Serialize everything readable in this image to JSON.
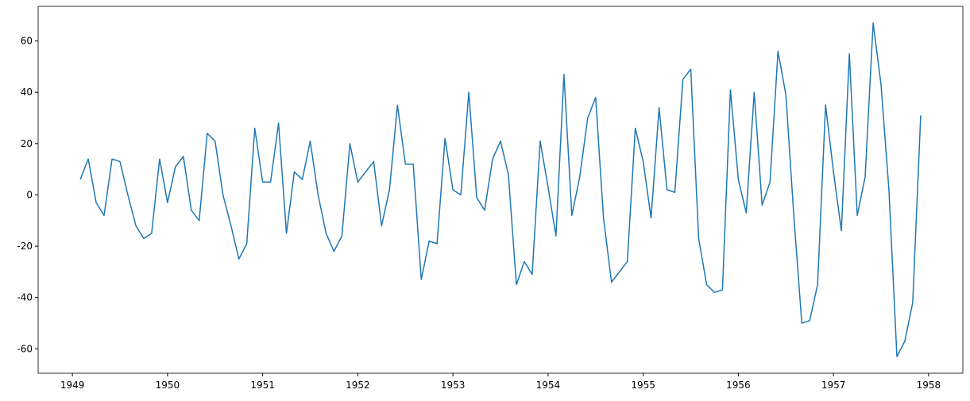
{
  "chart_data": {
    "type": "line",
    "color": "#1f77b4",
    "x": [
      1949.083,
      1949.167,
      1949.25,
      1949.333,
      1949.417,
      1949.5,
      1949.583,
      1949.667,
      1949.75,
      1949.833,
      1949.917,
      1950.0,
      1950.083,
      1950.167,
      1950.25,
      1950.333,
      1950.417,
      1950.5,
      1950.583,
      1950.667,
      1950.75,
      1950.833,
      1950.917,
      1951.0,
      1951.083,
      1951.167,
      1951.25,
      1951.333,
      1951.417,
      1951.5,
      1951.583,
      1951.667,
      1951.75,
      1951.833,
      1951.917,
      1952.0,
      1952.083,
      1952.167,
      1952.25,
      1952.333,
      1952.417,
      1952.5,
      1952.583,
      1952.667,
      1952.75,
      1952.833,
      1952.917,
      1953.0,
      1953.083,
      1953.167,
      1953.25,
      1953.333,
      1953.417,
      1953.5,
      1953.583,
      1953.667,
      1953.75,
      1953.833,
      1953.917,
      1954.0,
      1954.083,
      1954.167,
      1954.25,
      1954.333,
      1954.417,
      1954.5,
      1954.583,
      1954.667,
      1954.75,
      1954.833,
      1954.917,
      1955.0,
      1955.083,
      1955.167,
      1955.25,
      1955.333,
      1955.417,
      1955.5,
      1955.583,
      1955.667,
      1955.75,
      1955.833,
      1955.917,
      1956.0,
      1956.083,
      1956.167,
      1956.25,
      1956.333,
      1956.417,
      1956.5,
      1956.583,
      1956.667,
      1956.75,
      1956.833,
      1956.917,
      1957.0,
      1957.083,
      1957.167,
      1957.25,
      1957.333,
      1957.417,
      1957.5,
      1957.583,
      1957.667,
      1957.75,
      1957.833,
      1957.917
    ],
    "values": [
      6,
      14,
      -3,
      -8,
      14,
      13,
      0,
      -12,
      -17,
      -15,
      14,
      -3,
      11,
      15,
      -6,
      -10,
      24,
      21,
      0,
      -12,
      -25,
      -19,
      26,
      5,
      5,
      28,
      -15,
      9,
      6,
      21,
      0,
      -15,
      -22,
      -16,
      20,
      5,
      9,
      13,
      -12,
      2,
      35,
      12,
      12,
      -33,
      -18,
      -19,
      22,
      2,
      0,
      40,
      -1,
      -6,
      14,
      21,
      8,
      -35,
      -26,
      -31,
      21,
      3,
      -16,
      47,
      -8,
      7,
      30,
      38,
      -9,
      -34,
      -30,
      -26,
      26,
      13,
      -9,
      34,
      2,
      1,
      45,
      49,
      -17,
      -35,
      -38,
      -37,
      41,
      6,
      -7,
      40,
      -4,
      5,
      56,
      39,
      -8,
      -50,
      -49,
      -35,
      35,
      9,
      -14,
      55,
      -8,
      7,
      67,
      43,
      2,
      -63,
      -57,
      -42,
      31
    ],
    "xlim": [
      1948.64,
      1958.36
    ],
    "ylim": [
      -69.5,
      73.5
    ],
    "xticks": [
      1949,
      1950,
      1951,
      1952,
      1953,
      1954,
      1955,
      1956,
      1957,
      1958
    ],
    "yticks": [
      -60,
      -40,
      -20,
      0,
      20,
      40,
      60
    ]
  }
}
